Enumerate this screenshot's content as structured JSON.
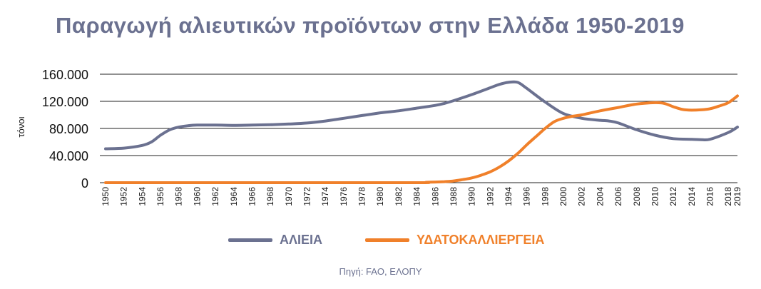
{
  "title": "Παραγωγή αλιευτικών προϊόντων στην Ελλάδα 1950-2019",
  "source": "Πηγή: FAO, ΕΛΟΠΥ",
  "chart_data": {
    "type": "line",
    "title": "Παραγωγή αλιευτικών προϊόντων στην Ελλάδα 1950-2019",
    "xlabel": "",
    "ylabel": "τόνοι",
    "xlim": [
      1950,
      2019
    ],
    "ylim": [
      0,
      160000
    ],
    "yticks": [
      0,
      40000,
      80000,
      120000,
      160000
    ],
    "ytick_labels": [
      "0",
      "40.000",
      "80.000",
      "120.000",
      "160.000"
    ],
    "xtick_labels": [
      "1950",
      "1952",
      "1954",
      "1956",
      "1958",
      "1960",
      "1962",
      "1964",
      "1966",
      "1968",
      "1970",
      "1972",
      "1974",
      "1976",
      "1978",
      "1980",
      "1982",
      "1984",
      "1986",
      "1988",
      "1990",
      "1992",
      "1994",
      "1996",
      "1998",
      "2000",
      "2002",
      "2004",
      "2006",
      "2008",
      "2010",
      "2012",
      "2014",
      "2016",
      "2018",
      "2019"
    ],
    "grid": true,
    "legend_position": "bottom",
    "series": [
      {
        "name": "ΑΛΙΕΙΑ",
        "color": "#6b7190",
        "x": [
          1950,
          1952,
          1954,
          1955,
          1956,
          1957,
          1958,
          1959,
          1960,
          1962,
          1964,
          1966,
          1968,
          1970,
          1972,
          1974,
          1976,
          1978,
          1980,
          1982,
          1984,
          1986,
          1987,
          1988,
          1990,
          1992,
          1993,
          1994,
          1995,
          1996,
          1998,
          2000,
          2002,
          2004,
          2005,
          2006,
          2008,
          2010,
          2012,
          2014,
          2015,
          2016,
          2018,
          2019
        ],
        "y": [
          50000,
          51000,
          55000,
          60000,
          70000,
          78000,
          82000,
          84000,
          85000,
          85000,
          84500,
          85000,
          85500,
          86500,
          88000,
          91000,
          95000,
          99000,
          103000,
          106000,
          110000,
          114000,
          117000,
          121000,
          130000,
          140000,
          145000,
          148000,
          148000,
          139000,
          119000,
          102000,
          95000,
          92000,
          91000,
          88000,
          78000,
          70000,
          65000,
          64000,
          63500,
          64000,
          74000,
          82000
        ]
      },
      {
        "name": "ΥΔΑΤΟΚΑΛΛΙΕΡΓΕΙΑ",
        "color": "#f0802a",
        "x": [
          1950,
          1970,
          1984,
          1985,
          1986,
          1987,
          1988,
          1989,
          1990,
          1991,
          1992,
          1993,
          1994,
          1995,
          1996,
          1997,
          1998,
          1999,
          2000,
          2001,
          2002,
          2004,
          2006,
          2008,
          2010,
          2011,
          2012,
          2013,
          2014,
          2015,
          2016,
          2017,
          2018,
          2019
        ],
        "y": [
          0,
          0,
          0,
          500,
          1000,
          1500,
          2500,
          4500,
          7000,
          11000,
          16000,
          23000,
          32000,
          43000,
          56000,
          68000,
          80000,
          90000,
          95000,
          98000,
          100000,
          106000,
          111000,
          116000,
          118000,
          117000,
          112000,
          108000,
          107000,
          107500,
          109000,
          113000,
          118000,
          128000
        ]
      }
    ]
  }
}
